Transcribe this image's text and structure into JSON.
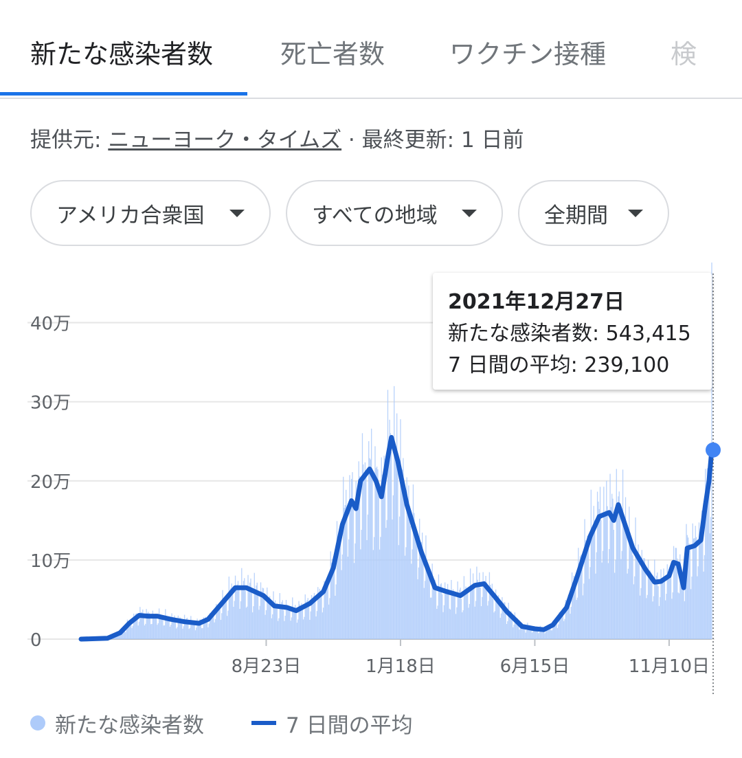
{
  "tabs": [
    {
      "label": "新たな感染者数",
      "active": true
    },
    {
      "label": "死亡者数",
      "active": false
    },
    {
      "label": "ワクチン接種",
      "active": false
    },
    {
      "label": "検",
      "active": false
    }
  ],
  "source": {
    "prefix": "提供元:",
    "link": "ニューヨーク・タイムズ",
    "suffix": " · 最終更新: 1 日前"
  },
  "filters": [
    {
      "label": "アメリカ合衆国"
    },
    {
      "label": "すべての地域"
    },
    {
      "label": "全期間"
    }
  ],
  "tooltip": {
    "date": "2021年12月27日",
    "cases": "新たな感染者数: 543,415",
    "avg": "7 日間の平均: 239,100"
  },
  "legend": {
    "cases": "新たな感染者数",
    "avg": "7 日間の平均"
  },
  "colors": {
    "bars": "#aecbfa",
    "line": "#1a5cc8",
    "accent": "#1a73e8",
    "marker": "#4285f4"
  },
  "chart_data": {
    "type": "bar",
    "yticks": [
      "0",
      "10万",
      "20万",
      "30万",
      "40万"
    ],
    "ytick_values": [
      0,
      100000,
      200000,
      300000,
      400000
    ],
    "ylim": [
      0,
      450000
    ],
    "xticks": [
      "8月23日",
      "1月18日",
      "6月15日",
      "11月10日"
    ],
    "xtick_dates": [
      "2020-08-23",
      "2021-01-18",
      "2021-06-15",
      "2021-11-10"
    ],
    "start_date": "2020-02-01",
    "end_date": "2021-12-27",
    "series": [
      {
        "name": "7 日間の平均",
        "type": "line",
        "points": [
          [
            "2020-02-01",
            0
          ],
          [
            "2020-03-01",
            1000
          ],
          [
            "2020-03-15",
            8000
          ],
          [
            "2020-03-25",
            20000
          ],
          [
            "2020-04-05",
            30000
          ],
          [
            "2020-04-15",
            29000
          ],
          [
            "2020-04-25",
            29000
          ],
          [
            "2020-05-10",
            25000
          ],
          [
            "2020-05-25",
            22000
          ],
          [
            "2020-06-10",
            20000
          ],
          [
            "2020-06-20",
            25000
          ],
          [
            "2020-07-05",
            45000
          ],
          [
            "2020-07-20",
            65000
          ],
          [
            "2020-08-01",
            65000
          ],
          [
            "2020-08-20",
            55000
          ],
          [
            "2020-09-01",
            42000
          ],
          [
            "2020-09-15",
            40000
          ],
          [
            "2020-09-25",
            36000
          ],
          [
            "2020-10-10",
            45000
          ],
          [
            "2020-10-25",
            60000
          ],
          [
            "2020-11-05",
            90000
          ],
          [
            "2020-11-15",
            145000
          ],
          [
            "2020-11-25",
            175000
          ],
          [
            "2020-11-30",
            165000
          ],
          [
            "2020-12-05",
            200000
          ],
          [
            "2020-12-15",
            215000
          ],
          [
            "2020-12-22",
            200000
          ],
          [
            "2020-12-28",
            180000
          ],
          [
            "2021-01-04",
            230000
          ],
          [
            "2021-01-08",
            255000
          ],
          [
            "2021-01-15",
            225000
          ],
          [
            "2021-01-25",
            170000
          ],
          [
            "2021-02-10",
            110000
          ],
          [
            "2021-02-25",
            65000
          ],
          [
            "2021-03-10",
            60000
          ],
          [
            "2021-03-25",
            55000
          ],
          [
            "2021-04-10",
            68000
          ],
          [
            "2021-04-20",
            70000
          ],
          [
            "2021-05-01",
            55000
          ],
          [
            "2021-05-15",
            35000
          ],
          [
            "2021-06-01",
            16000
          ],
          [
            "2021-06-15",
            13000
          ],
          [
            "2021-06-25",
            12000
          ],
          [
            "2021-07-05",
            18000
          ],
          [
            "2021-07-20",
            40000
          ],
          [
            "2021-08-01",
            80000
          ],
          [
            "2021-08-15",
            130000
          ],
          [
            "2021-08-25",
            155000
          ],
          [
            "2021-09-05",
            160000
          ],
          [
            "2021-09-10",
            150000
          ],
          [
            "2021-09-15",
            170000
          ],
          [
            "2021-10-01",
            115000
          ],
          [
            "2021-10-15",
            88000
          ],
          [
            "2021-10-25",
            72000
          ],
          [
            "2021-11-01",
            73000
          ],
          [
            "2021-11-10",
            80000
          ],
          [
            "2021-11-15",
            97000
          ],
          [
            "2021-11-20",
            95000
          ],
          [
            "2021-11-26",
            65000
          ],
          [
            "2021-11-30",
            115000
          ],
          [
            "2021-12-08",
            118000
          ],
          [
            "2021-12-15",
            125000
          ],
          [
            "2021-12-20",
            170000
          ],
          [
            "2021-12-24",
            200000
          ],
          [
            "2021-12-27",
            239100
          ]
        ]
      },
      {
        "name": "新たな感染者数",
        "type": "bar",
        "annotated_point": [
          "2021-12-27",
          543415
        ]
      }
    ],
    "grid": true,
    "legend_position": "bottom"
  }
}
